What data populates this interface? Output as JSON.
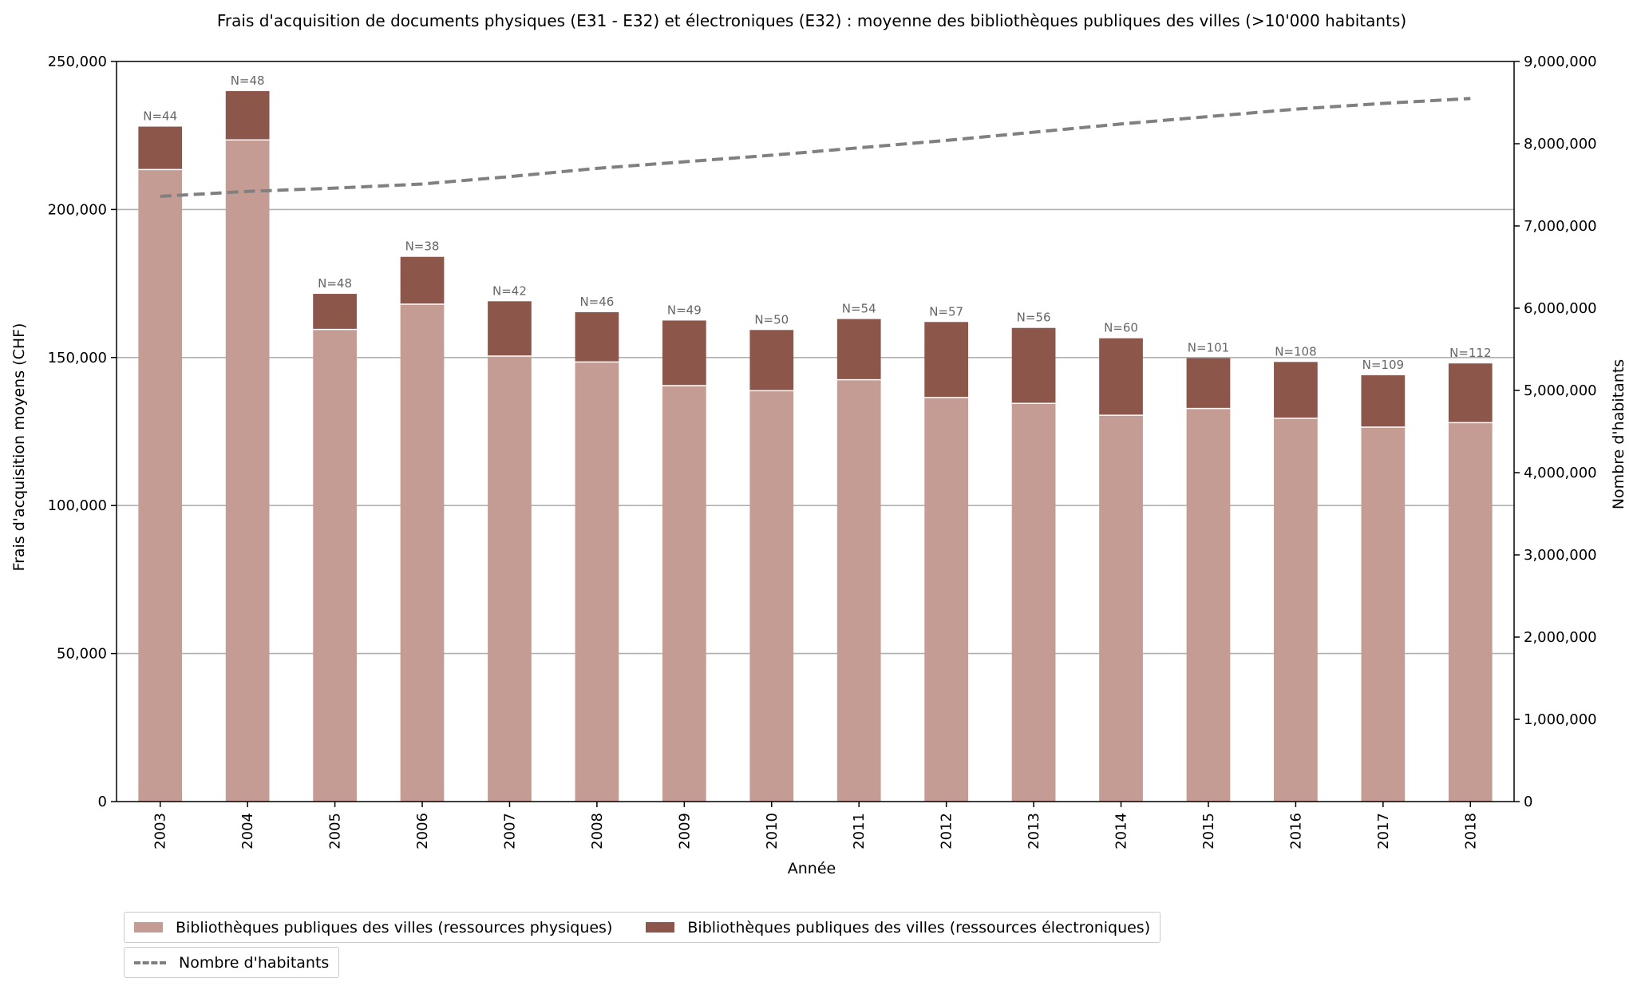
{
  "chart_data": {
    "type": "bar",
    "stacked": true,
    "title": "Frais d'acquisition de documents physiques (E31 - E32) et électroniques (E32) : moyenne des bibliothèques publiques des villes (>10'000 habitants)",
    "xlabel": "Année",
    "ylabel": "Frais d'acquisition moyens (CHF)",
    "y2label": "Nombre d'habitants",
    "categories": [
      "2003",
      "2004",
      "2005",
      "2006",
      "2007",
      "2008",
      "2009",
      "2010",
      "2011",
      "2012",
      "2013",
      "2014",
      "2015",
      "2016",
      "2017",
      "2018"
    ],
    "ylim": [
      0,
      250000
    ],
    "y2lim": [
      0,
      9000000
    ],
    "yticks": [
      0,
      50000,
      100000,
      150000,
      200000,
      250000
    ],
    "ytick_labels": [
      "0",
      "50,000",
      "100,000",
      "150,000",
      "200,000",
      "250,000"
    ],
    "y2ticks": [
      0,
      1000000,
      2000000,
      3000000,
      4000000,
      5000000,
      6000000,
      7000000,
      8000000,
      9000000
    ],
    "y2tick_labels": [
      "0",
      "1,000,000",
      "2,000,000",
      "3,000,000",
      "4,000,000",
      "5,000,000",
      "6,000,000",
      "7,000,000",
      "8,000,000",
      "9,000,000"
    ],
    "grid": "horizontal",
    "legend_position": "bottom-left",
    "series": [
      {
        "name": "Bibliothèques publiques des villes (ressources physiques)",
        "color": "#c49c94",
        "values": [
          213500,
          223500,
          159500,
          168000,
          150500,
          148500,
          140500,
          138800,
          142500,
          136500,
          134500,
          130500,
          132800,
          129500,
          126500,
          128000
        ]
      },
      {
        "name": "Bibliothèques publiques des villes (ressources électroniques)",
        "color": "#8c564b",
        "values": [
          14500,
          16500,
          12000,
          16000,
          18500,
          16800,
          22000,
          20500,
          20500,
          25500,
          25500,
          26000,
          17000,
          19000,
          17500,
          20000
        ]
      },
      {
        "name": "Nombre d'habitants",
        "type": "line",
        "axis": "right",
        "style": "dashed",
        "color": "#808080",
        "values": [
          7360000,
          7420000,
          7460000,
          7510000,
          7600000,
          7700000,
          7780000,
          7860000,
          7950000,
          8040000,
          8140000,
          8240000,
          8330000,
          8420000,
          8490000,
          8550000
        ]
      }
    ],
    "bar_labels": [
      "N=44",
      "N=48",
      "N=48",
      "N=38",
      "N=42",
      "N=46",
      "N=49",
      "N=50",
      "N=54",
      "N=57",
      "N=56",
      "N=60",
      "N=101",
      "N=108",
      "N=109",
      "N=112"
    ]
  }
}
